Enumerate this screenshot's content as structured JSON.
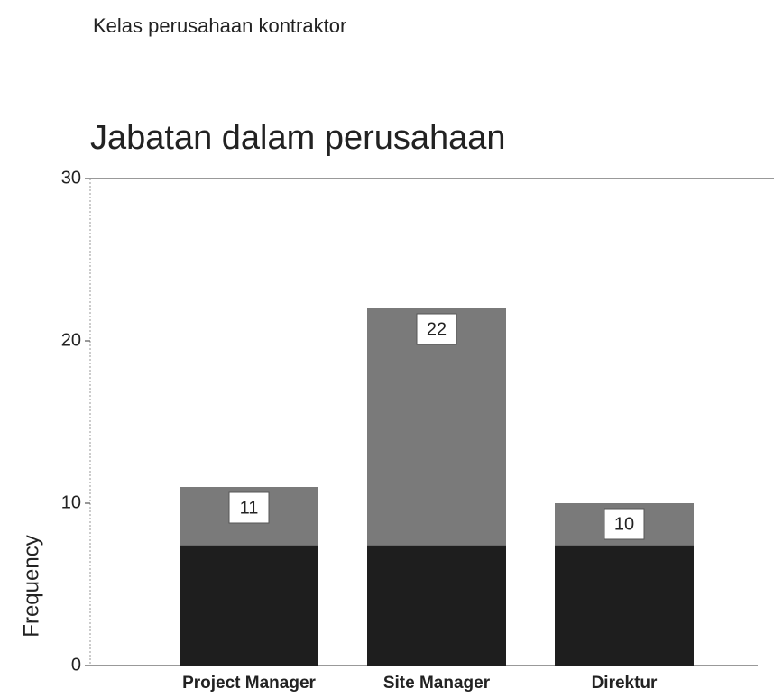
{
  "header": {
    "text": "Kelas perusahaan kontraktor"
  },
  "chart_data": {
    "type": "bar",
    "title": "Jabatan dalam perusahaan",
    "ylabel": "Frequency",
    "categories": [
      "Project Manager",
      "Site Manager",
      "Direktur"
    ],
    "values": [
      11,
      22,
      10
    ],
    "color": "#7a7a7a",
    "ylim": [
      0,
      30
    ],
    "yticks": [
      0,
      10,
      20,
      30
    ],
    "grid": false
  }
}
